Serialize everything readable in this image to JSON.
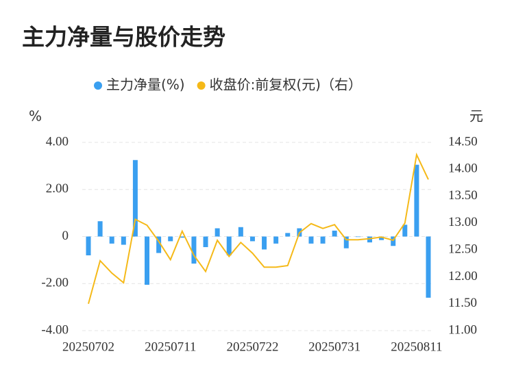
{
  "chart_data": {
    "type": "bar_line",
    "title": "主力净量与股价走势",
    "y_axis_label": "%",
    "y2_axis_label": "元",
    "categories": [
      "20250702",
      null,
      null,
      null,
      null,
      null,
      null,
      "20250711",
      null,
      null,
      null,
      null,
      null,
      null,
      "20250722",
      null,
      null,
      null,
      null,
      null,
      null,
      "20250731",
      null,
      null,
      null,
      null,
      null,
      null,
      "20250811",
      null
    ],
    "series": [
      {
        "name": "主力净量(%)",
        "color": "#3a9ff0",
        "kind": "bar",
        "values": [
          -0.8,
          0.65,
          -0.3,
          -0.35,
          3.25,
          -2.05,
          -0.7,
          -0.2,
          -0.05,
          -1.15,
          -0.45,
          0.35,
          -0.8,
          0.4,
          -0.2,
          -0.55,
          -0.3,
          0.15,
          0.35,
          -0.3,
          -0.3,
          0.25,
          -0.5,
          -0.02,
          -0.25,
          -0.15,
          -0.4,
          0.5,
          3.05,
          -2.6
        ]
      },
      {
        "name": "收盘价:前复权(元)（右）",
        "color": "#f5b918",
        "kind": "line",
        "axis": "y2",
        "values": [
          11.5,
          12.3,
          12.07,
          11.89,
          13.07,
          12.96,
          12.66,
          12.32,
          12.85,
          12.4,
          12.1,
          12.68,
          12.38,
          12.64,
          12.44,
          12.18,
          12.18,
          12.21,
          12.82,
          12.99,
          12.9,
          12.97,
          12.69,
          12.69,
          12.71,
          12.74,
          12.68,
          13.0,
          14.27,
          13.81
        ]
      }
    ],
    "ylim": [
      -4,
      4
    ],
    "yticks": [
      {
        "value": 4,
        "label": "4.00"
      },
      {
        "value": 2,
        "label": "2.00"
      },
      0,
      {
        "value": -2,
        "label": "-2.00"
      },
      {
        "value": -4,
        "label": "-4.00"
      }
    ],
    "y2lim": [
      11,
      14.5
    ],
    "y2ticks": [
      {
        "value": 14.5,
        "label": "14.50"
      },
      {
        "value": 14,
        "label": "14.00"
      },
      {
        "value": 13.5,
        "label": "13.50"
      },
      {
        "value": 13,
        "label": "13.00"
      },
      {
        "value": 12.5,
        "label": "12.50"
      },
      {
        "value": 12,
        "label": "12.00"
      },
      {
        "value": 11.5,
        "label": "11.50"
      },
      {
        "value": 11,
        "label": "11.00"
      }
    ],
    "grid": true
  }
}
